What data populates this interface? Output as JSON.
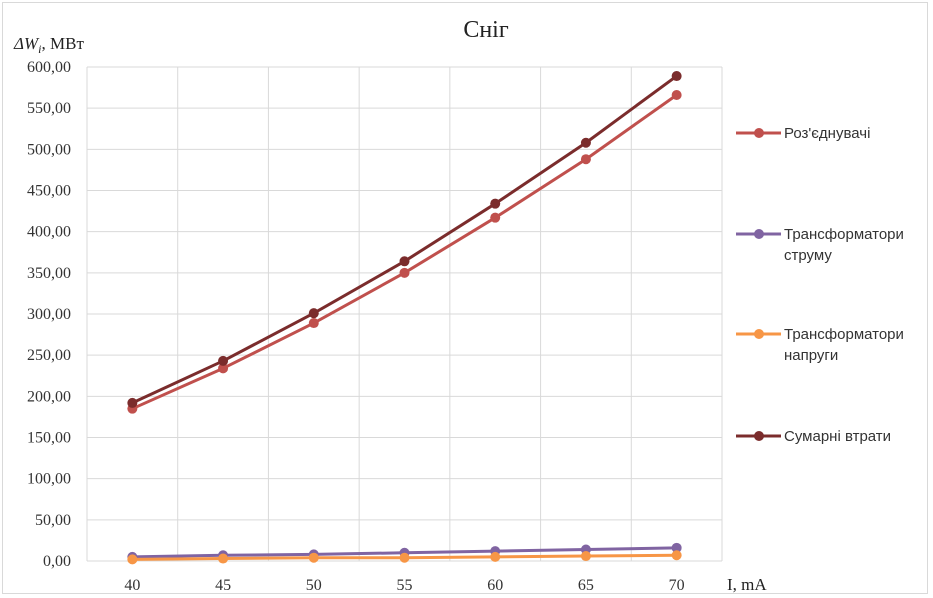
{
  "chart_data": {
    "type": "line",
    "title": "Сніг",
    "ylabel": "ΔW_i, МВт",
    "ylabel_main": "ΔW",
    "ylabel_sub": "i",
    "ylabel_unit": ", МВт",
    "xlabel": "I, mA",
    "x": [
      40,
      45,
      50,
      55,
      60,
      65,
      70
    ],
    "ylim": [
      0,
      600
    ],
    "ytick_step": 50,
    "ytick_labels": [
      "0,00",
      "50,00",
      "100,00",
      "150,00",
      "200,00",
      "250,00",
      "300,00",
      "350,00",
      "400,00",
      "450,00",
      "500,00",
      "550,00",
      "600,00"
    ],
    "grid": true,
    "legend_position": "right",
    "series": [
      {
        "name": "Роз'єднувачі",
        "legend_lines": [
          "Роз'єднувачі"
        ],
        "color": "#c0504d",
        "values": [
          185,
          234,
          289,
          350,
          417,
          488,
          566
        ]
      },
      {
        "name": "Трансформатори струму",
        "legend_lines": [
          "Трансформатори",
          "струму"
        ],
        "color": "#8064a2",
        "values": [
          5,
          7,
          8,
          10,
          12,
          14,
          16
        ]
      },
      {
        "name": "Трансформатори напруги",
        "legend_lines": [
          "Трансформатори",
          "напруги"
        ],
        "color": "#f79646",
        "values": [
          2,
          3,
          4,
          4,
          5,
          6,
          7
        ]
      },
      {
        "name": "Сумарні втрати",
        "legend_lines": [
          "Сумарні втрати"
        ],
        "color": "#7b2c2c",
        "values": [
          192,
          243,
          301,
          364,
          434,
          508,
          589
        ]
      }
    ]
  }
}
